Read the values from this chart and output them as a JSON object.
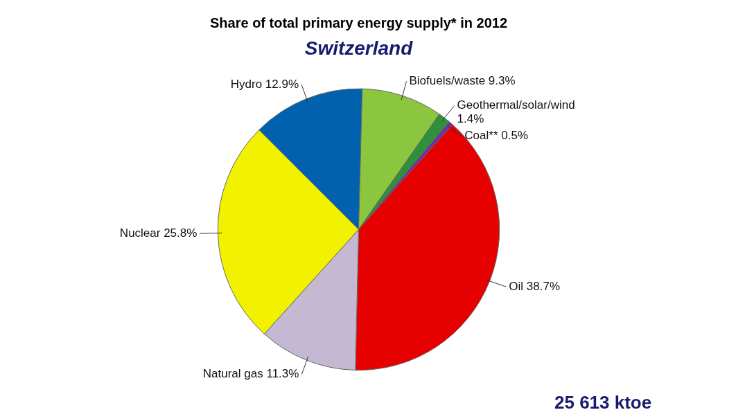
{
  "chart_data": {
    "type": "pie",
    "title": "Share of total primary energy supply* in 2012",
    "subtitle": "Switzerland",
    "categories": [
      "Hydro",
      "Biofuels/waste",
      "Geothermal/solar/wind",
      "Coal**",
      "Oil",
      "Natural gas",
      "Nuclear"
    ],
    "values": [
      12.9,
      9.3,
      1.4,
      0.5,
      38.7,
      11.3,
      25.8
    ],
    "value_labels": [
      "12.9%",
      "9.3%",
      "1.4%",
      "0.5%",
      "38.7%",
      "11.3%",
      "25.8%"
    ],
    "colors": [
      "#0062ae",
      "#8cc63f",
      "#2f8f3a",
      "#7030a0",
      "#e60000",
      "#c4b8d2",
      "#f2f200"
    ],
    "annotations": [
      "25 613 ktoe"
    ],
    "legend": false
  }
}
